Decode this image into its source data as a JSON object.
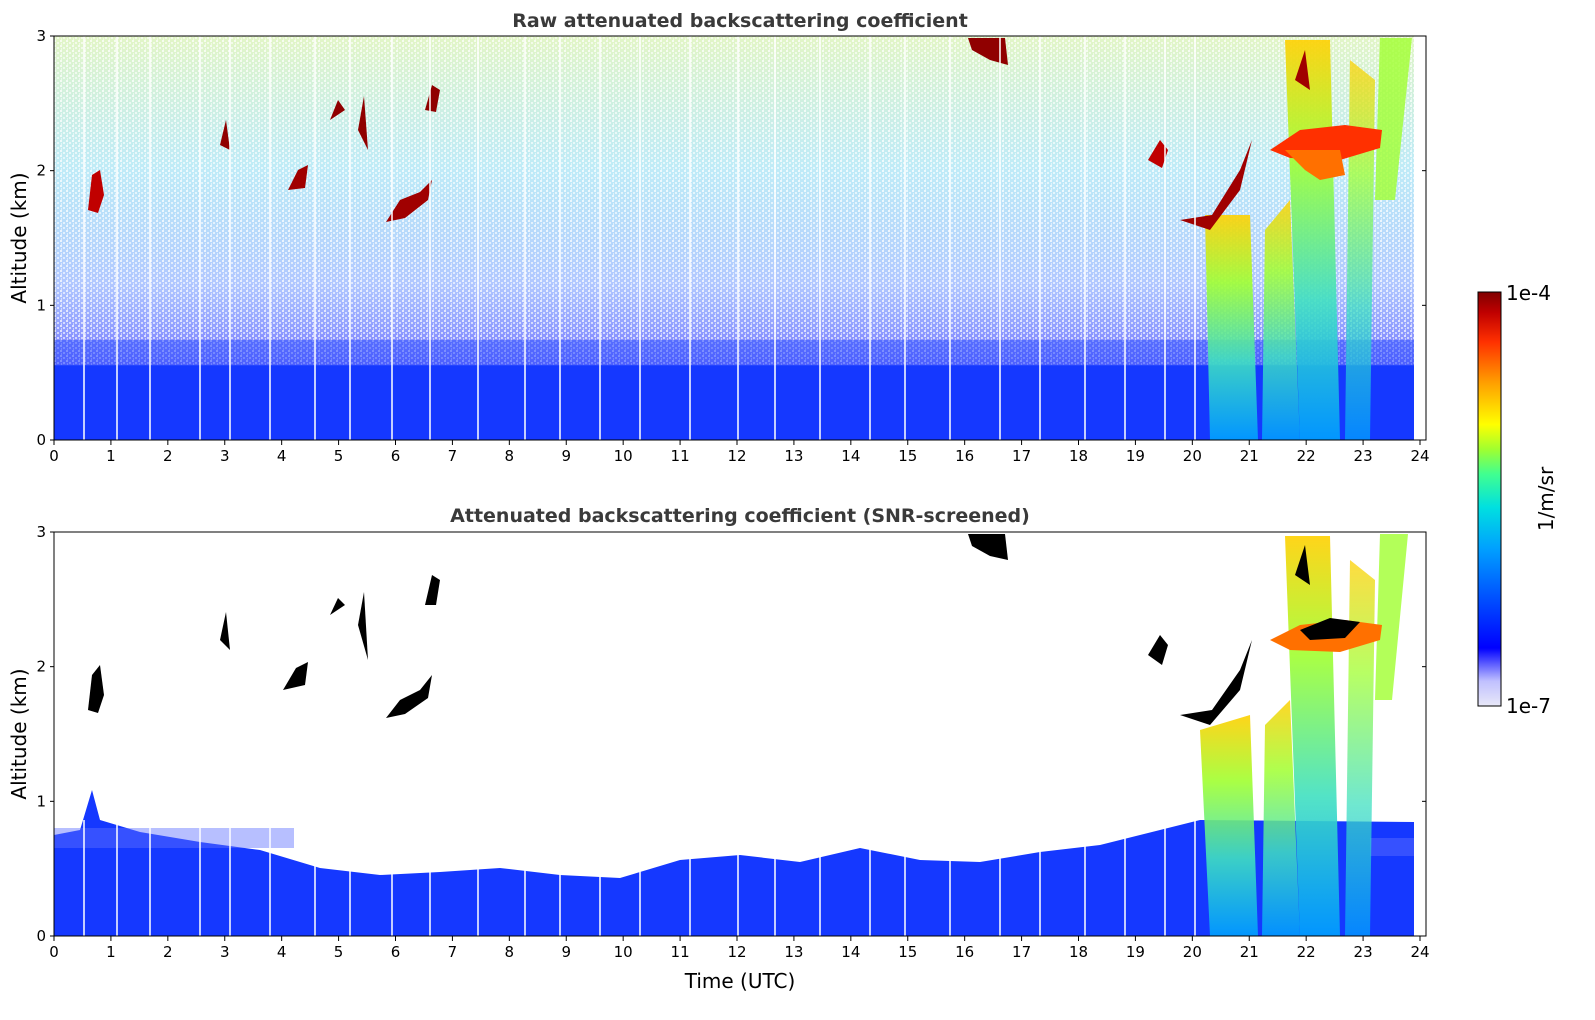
{
  "chart_data": [
    {
      "type": "heatmap",
      "title": "Raw attenuated backscattering coefficient",
      "xlabel": "",
      "ylabel": "Altitude (km)",
      "xlim": [
        0,
        24
      ],
      "ylim": [
        0,
        3
      ],
      "xticks": [
        "0",
        "1",
        "2",
        "3",
        "4",
        "5",
        "6",
        "7",
        "8",
        "9",
        "10",
        "11",
        "12",
        "13",
        "14",
        "15",
        "16",
        "17",
        "18",
        "19",
        "20",
        "21",
        "22",
        "23",
        "24"
      ],
      "yticks": [
        "0",
        "1",
        "2",
        "3"
      ],
      "regions": [
        {
          "kind": "boundary_layer",
          "x": [
            0,
            23.9
          ],
          "y": [
            0,
            0.55
          ],
          "level": "low"
        },
        {
          "kind": "noise",
          "x": [
            0,
            23.9
          ],
          "y": [
            0.55,
            3
          ],
          "level": "mixed"
        },
        {
          "kind": "cloud",
          "x": [
            0.6,
            0.8
          ],
          "y": [
            1.7,
            2.0
          ],
          "level": "high"
        },
        {
          "kind": "cloud",
          "x": [
            5.8,
            6.6
          ],
          "y": [
            1.6,
            1.9
          ],
          "level": "high"
        },
        {
          "kind": "cloud",
          "x": [
            4.1,
            4.5
          ],
          "y": [
            1.85,
            2.05
          ],
          "level": "high"
        },
        {
          "kind": "cloud",
          "x": [
            16.0,
            16.6
          ],
          "y": [
            2.75,
            3.0
          ],
          "level": "high"
        },
        {
          "kind": "cloud",
          "x": [
            19.2,
            20.8
          ],
          "y": [
            1.55,
            2.2
          ],
          "level": "high"
        },
        {
          "kind": "cloud",
          "x": [
            21.5,
            23.2
          ],
          "y": [
            2.0,
            2.4
          ],
          "level": "high"
        },
        {
          "kind": "rain",
          "x": [
            20.3,
            23.6
          ],
          "y": [
            0,
            3
          ],
          "level": "medium"
        }
      ]
    },
    {
      "type": "heatmap",
      "title": "Attenuated backscattering coefficient (SNR-screened)",
      "xlabel": "Time (UTC)",
      "ylabel": "Altitude (km)",
      "xlim": [
        0,
        24
      ],
      "ylim": [
        0,
        3
      ],
      "xticks": [
        "0",
        "1",
        "2",
        "3",
        "4",
        "5",
        "6",
        "7",
        "8",
        "9",
        "10",
        "11",
        "12",
        "13",
        "14",
        "15",
        "16",
        "17",
        "18",
        "19",
        "20",
        "21",
        "22",
        "23",
        "24"
      ],
      "yticks": [
        "0",
        "1",
        "2",
        "3"
      ],
      "regions": [
        {
          "kind": "boundary_layer",
          "x": [
            0,
            23.9
          ],
          "y": [
            0,
            0.7
          ],
          "level": "low"
        },
        {
          "kind": "cloud",
          "x": [
            0.6,
            0.8
          ],
          "y": [
            1.7,
            2.0
          ],
          "level": "high"
        },
        {
          "kind": "cloud",
          "x": [
            5.8,
            6.6
          ],
          "y": [
            1.6,
            1.9
          ],
          "level": "high"
        },
        {
          "kind": "cloud",
          "x": [
            16.0,
            16.6
          ],
          "y": [
            2.75,
            3.0
          ],
          "level": "high"
        },
        {
          "kind": "cloud",
          "x": [
            19.2,
            20.8
          ],
          "y": [
            1.55,
            2.2
          ],
          "level": "high"
        },
        {
          "kind": "cloud",
          "x": [
            21.5,
            23.2
          ],
          "y": [
            2.0,
            2.4
          ],
          "level": "high"
        },
        {
          "kind": "rain",
          "x": [
            20.3,
            23.6
          ],
          "y": [
            0,
            3
          ],
          "level": "medium"
        }
      ]
    }
  ],
  "colorbar": {
    "max_label": "1e-4",
    "min_label": "1e-7",
    "label": "1/m/sr",
    "colors": [
      "#e8e8f8",
      "#c0c0ff",
      "#0000ff",
      "#0050ff",
      "#00a0ff",
      "#00e0e0",
      "#40ff90",
      "#a0ff30",
      "#ffff00",
      "#ffa000",
      "#ff3000",
      "#c00000",
      "#800000"
    ]
  }
}
